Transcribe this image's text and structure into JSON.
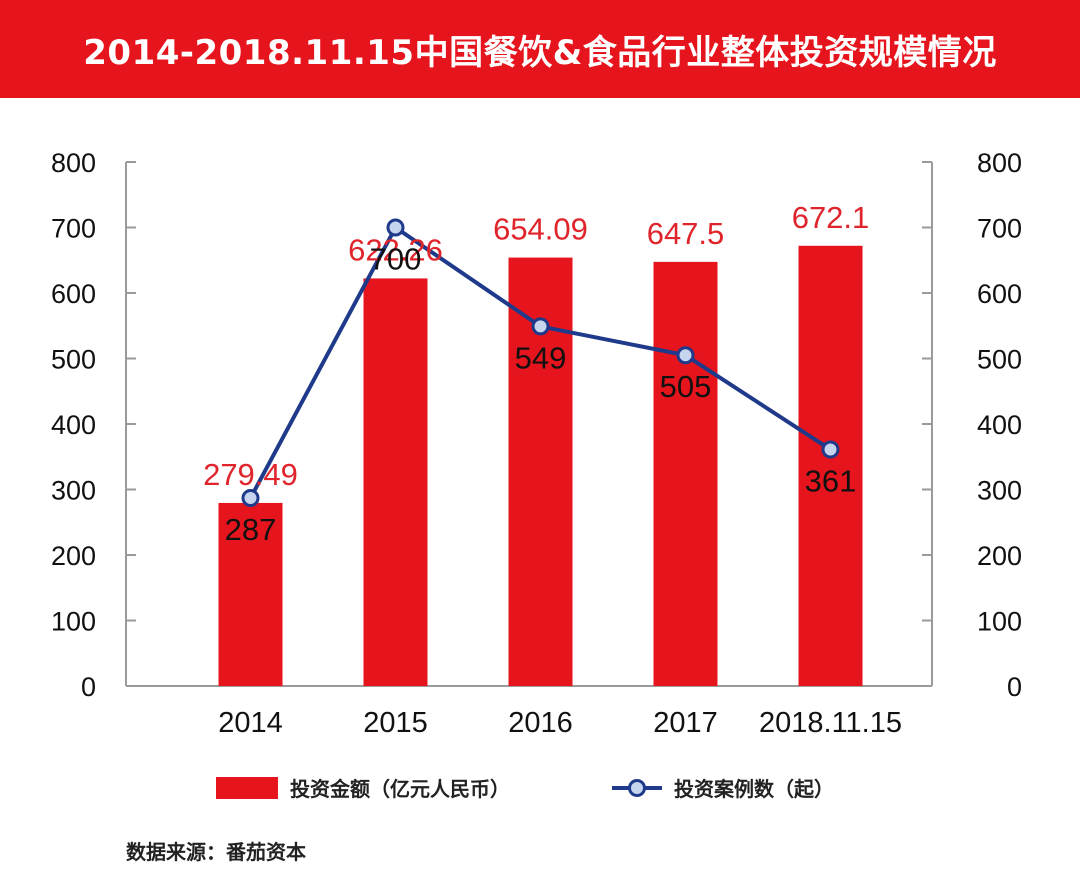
{
  "title": "2014-2018.11.15中国餐饮&食品行业整体投资规模情况",
  "source": "数据来源：番茄资本",
  "colors": {
    "bar": "#e6141c",
    "line": "#1f3a8a",
    "marker_fill": "#c6d4ee",
    "axis": "#9a9a9a"
  },
  "chart_data": {
    "type": "bar",
    "categories": [
      "2014",
      "2015",
      "2016",
      "2017",
      "2018.11.15"
    ],
    "series": [
      {
        "name": "投资金额（亿元人民币）",
        "type": "bar",
        "axis": "left",
        "values": [
          279.49,
          622.26,
          654.09,
          647.5,
          672.1
        ],
        "labels": [
          "279.49",
          "622.26",
          "654.09",
          "647.5",
          "672.1"
        ]
      },
      {
        "name": "投资案例数（起）",
        "type": "line",
        "axis": "right",
        "values": [
          287,
          700,
          549,
          505,
          361
        ],
        "labels": [
          "287",
          "700",
          "549",
          "505",
          "361"
        ]
      }
    ],
    "y_left": {
      "min": 0,
      "max": 800,
      "ticks": [
        "0",
        "100",
        "200",
        "300",
        "400",
        "500",
        "600",
        "700",
        "800"
      ]
    },
    "y_right": {
      "min": 0,
      "max": 800,
      "ticks": [
        "0",
        "100",
        "200",
        "300",
        "400",
        "500",
        "600",
        "700",
        "800"
      ]
    },
    "grid": false,
    "legend_position": "bottom"
  }
}
